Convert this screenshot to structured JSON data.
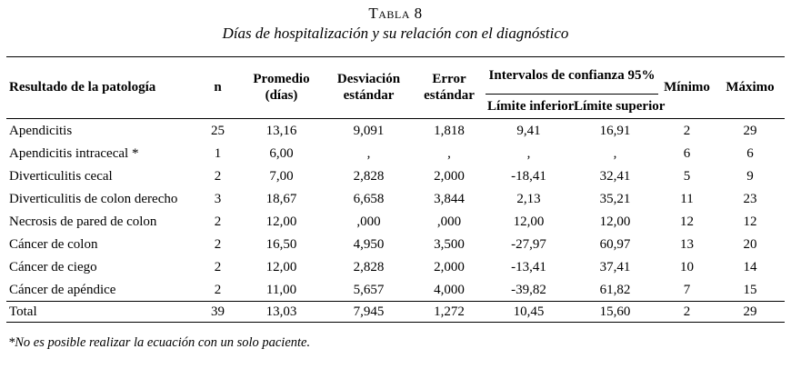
{
  "caption": {
    "number": "Tabla 8",
    "title": "Días de hospitalización y su relación con el diagnóstico"
  },
  "table": {
    "columns": {
      "pathology": "Resultado de la patología",
      "n": "n",
      "mean": "Promedio (días)",
      "std_dev": "Desviación estándar",
      "std_error": "Error estándar",
      "ci_group": "Intervalos de confianza 95%",
      "ci_lower": "Límite inferior",
      "ci_upper": "Límite superior",
      "min": "Mínimo",
      "max": "Máximo"
    },
    "rows": [
      [
        "Apendicitis",
        "25",
        "13,16",
        "9,091",
        "1,818",
        "9,41",
        "16,91",
        "2",
        "29"
      ],
      [
        "Apendicitis intracecal *",
        "1",
        "6,00",
        ",",
        ",",
        ",",
        ",",
        "6",
        "6"
      ],
      [
        "Diverticulitis cecal",
        "2",
        "7,00",
        "2,828",
        "2,000",
        "-18,41",
        "32,41",
        "5",
        "9"
      ],
      [
        "Diverticulitis de colon derecho",
        "3",
        "18,67",
        "6,658",
        "3,844",
        "2,13",
        "35,21",
        "11",
        "23"
      ],
      [
        "Necrosis de pared de colon",
        "2",
        "12,00",
        ",000",
        ",000",
        "12,00",
        "12,00",
        "12",
        "12"
      ],
      [
        "Cáncer de colon",
        "2",
        "16,50",
        "4,950",
        "3,500",
        "-27,97",
        "60,97",
        "13",
        "20"
      ],
      [
        "Cáncer de ciego",
        "2",
        "12,00",
        "2,828",
        "2,000",
        "-13,41",
        "37,41",
        "10",
        "14"
      ],
      [
        "Cáncer de apéndice",
        "2",
        "11,00",
        "5,657",
        "4,000",
        "-39,82",
        "61,82",
        "7",
        "15"
      ]
    ],
    "total_row": [
      "Total",
      "39",
      "13,03",
      "7,945",
      "1,272",
      "10,45",
      "15,60",
      "2",
      "29"
    ]
  },
  "footnote": "*No es posible realizar la ecuación con un solo paciente."
}
